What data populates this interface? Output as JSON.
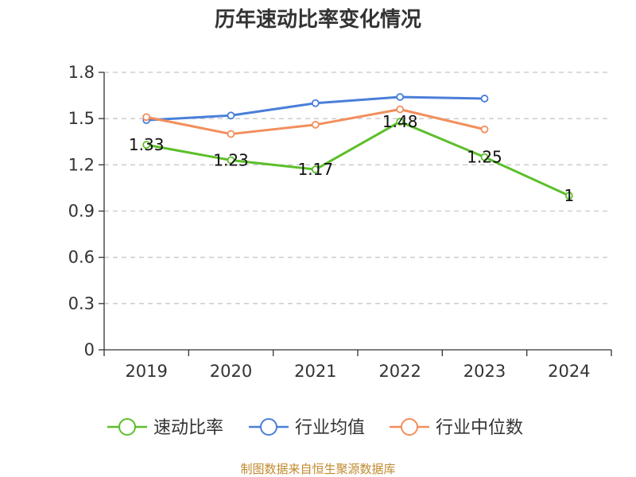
{
  "chart_data": {
    "type": "line",
    "title": "历年速动比率变化情况",
    "categories": [
      "2019",
      "2020",
      "2021",
      "2022",
      "2023",
      "2024"
    ],
    "ylim": [
      0,
      1.8
    ],
    "yticks": [
      "0",
      "0.3",
      "0.6",
      "0.9",
      "1.2",
      "1.5",
      "1.8"
    ],
    "ytick_values": [
      0,
      0.3,
      0.6,
      0.9,
      1.2,
      1.5,
      1.8
    ],
    "grid": true,
    "legend_position": "bottom",
    "series": [
      {
        "name": "速动比率",
        "color": "#5cbf2a",
        "values": [
          1.33,
          1.23,
          1.17,
          1.48,
          1.25,
          1.0
        ],
        "labels": [
          "1.33",
          "1.23",
          "1.17",
          "1.48",
          "1.25",
          "1"
        ]
      },
      {
        "name": "行业均值",
        "color": "#4a7fd9",
        "values": [
          1.49,
          1.52,
          1.6,
          1.64,
          1.63,
          null
        ]
      },
      {
        "name": "行业中位数",
        "color": "#f28e5c",
        "values": [
          1.51,
          1.4,
          1.46,
          1.56,
          1.43,
          null
        ]
      }
    ],
    "source": "制图数据来自恒生聚源数据库"
  }
}
